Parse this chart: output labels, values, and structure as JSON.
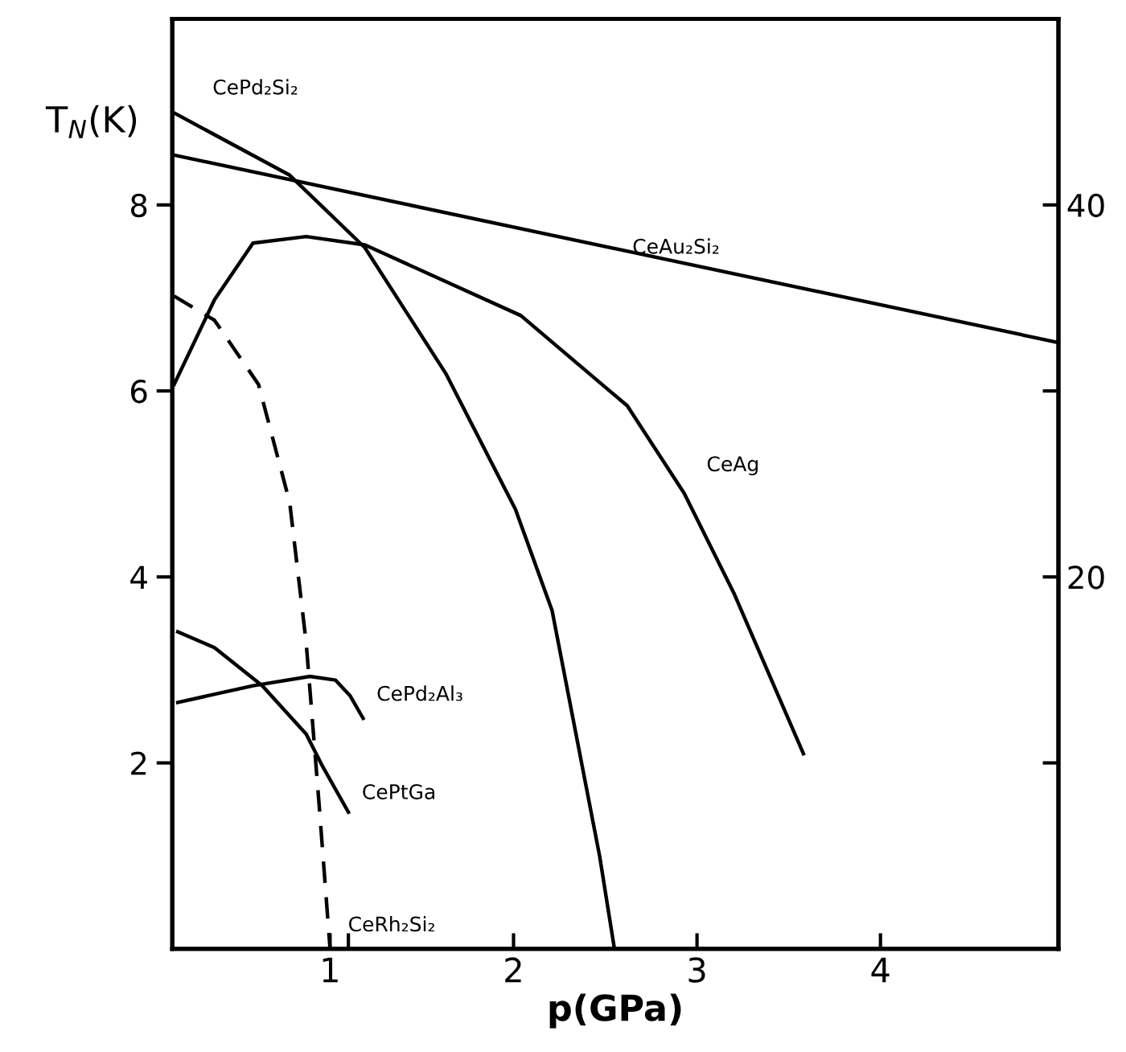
{
  "chart_data": {
    "type": "line",
    "xlabel": "p(GPa)",
    "ylabel": "T$_{N}$(K)",
    "xlim": [
      0.14,
      4.97
    ],
    "ylim": [
      0,
      10
    ],
    "xticks": [
      1,
      {
        "value": 1.1,
        "label": null
      },
      2,
      3,
      4
    ],
    "yticks": [
      2,
      4,
      6,
      8
    ],
    "y2lim": [
      0,
      50
    ],
    "y2ticks": [
      {
        "value": 10,
        "label": null
      },
      20,
      {
        "value": 30,
        "label": null
      },
      40
    ],
    "grid": false,
    "legend": false,
    "marker": "none",
    "series": [
      {
        "name": "CePd₂Si₂",
        "color": "#000000",
        "x": [
          0.14,
          0.78,
          1.19,
          1.63,
          2.01,
          2.21,
          2.47,
          2.55
        ],
        "values": [
          9.0,
          8.32,
          7.54,
          6.19,
          4.73,
          3.64,
          0.99,
          0
        ]
      },
      {
        "name": "CeAu₂Si₂",
        "color": "#000000",
        "x": [
          0.14,
          4.97
        ],
        "values": [
          8.54,
          6.52
        ]
      },
      {
        "name": "CeAg",
        "color": "#000000",
        "x": [
          0.15,
          0.37,
          0.58,
          0.87,
          1.19,
          2.04,
          2.62,
          2.93,
          3.2,
          3.58
        ],
        "values": [
          6.07,
          6.98,
          7.59,
          7.66,
          7.57,
          6.81,
          5.84,
          4.9,
          3.83,
          2.1
        ]
      },
      {
        "name": "CeRh₂Si₂",
        "color": "#000000",
        "line_style": "dashed",
        "x": [
          0.15,
          0.37,
          0.61,
          0.78,
          0.87,
          0.94,
          1.0
        ],
        "values": [
          7.02,
          6.76,
          6.07,
          4.8,
          3.29,
          1.56,
          0
        ]
      },
      {
        "name": "CePd₂Al₃",
        "color": "#000000",
        "x": [
          0.17,
          0.58,
          0.89,
          1.03,
          1.11,
          1.18
        ],
        "values": [
          2.65,
          2.83,
          2.93,
          2.89,
          2.72,
          2.48
        ]
      },
      {
        "name": "CePtGa",
        "color": "#000000",
        "x": [
          0.17,
          0.37,
          0.63,
          0.87,
          0.96,
          1.1
        ],
        "values": [
          3.41,
          3.24,
          2.83,
          2.31,
          1.96,
          1.47
        ]
      }
    ]
  }
}
